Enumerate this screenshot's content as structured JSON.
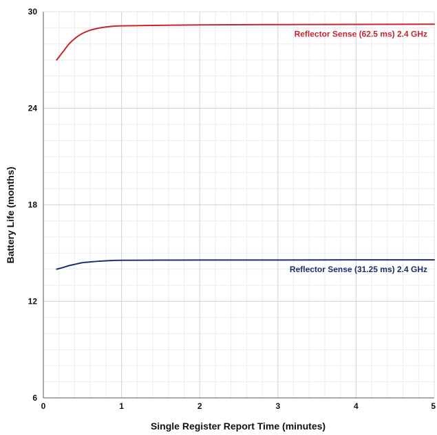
{
  "chart_data": {
    "type": "line",
    "title": "",
    "xlabel": "Single Register Report Time (minutes)",
    "ylabel": "Battery Life (months)",
    "xlim": [
      0,
      5
    ],
    "ylim": [
      6,
      30
    ],
    "x_ticks": [
      "0",
      "1",
      "2",
      "3",
      "4",
      "5"
    ],
    "y_ticks": [
      "6",
      "12",
      "18",
      "24",
      "30"
    ],
    "grid": true,
    "series": [
      {
        "name": "Reflector Sense (62.5 ms) 2.4 GHz",
        "color": "#c1272d",
        "x": [
          0.17,
          0.25,
          0.33,
          0.42,
          0.5,
          0.6,
          0.7,
          0.8,
          0.9,
          1.0,
          1.5,
          2.0,
          3.0,
          4.0,
          5.0
        ],
        "y": [
          27.0,
          27.5,
          28.0,
          28.4,
          28.65,
          28.85,
          28.97,
          29.05,
          29.1,
          29.12,
          29.15,
          29.18,
          29.2,
          29.21,
          29.22
        ]
      },
      {
        "name": "Reflector Sense (31.25 ms) 2.4 GHz",
        "color": "#1f2d6b",
        "x": [
          0.17,
          0.25,
          0.33,
          0.42,
          0.5,
          0.6,
          0.7,
          0.8,
          0.9,
          1.0,
          1.5,
          2.0,
          3.0,
          4.0,
          5.0
        ],
        "y": [
          14.0,
          14.1,
          14.22,
          14.32,
          14.4,
          14.45,
          14.49,
          14.52,
          14.54,
          14.55,
          14.56,
          14.57,
          14.57,
          14.58,
          14.58
        ]
      }
    ]
  }
}
